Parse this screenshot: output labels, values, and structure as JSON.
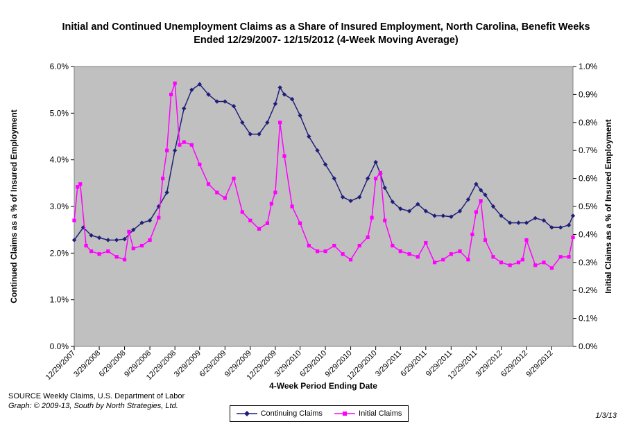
{
  "chart_data": {
    "type": "line",
    "title": "Initial and Continued Unemployment Claims as a Share of Insured Employment, North Carolina, Benefit Weeks Ended 12/29/2007- 12/15/2012 (4-Week Moving Average)",
    "xlabel": "4-Week Period Ending Date",
    "ylabel_left": "Continued Claims as a % of Insured Employment",
    "ylabel_right": "Initial Claims as a % of Insured Employment",
    "ylim_left": [
      0,
      6
    ],
    "ylim_right": [
      0,
      1
    ],
    "y_ticks_left": [
      "0.0%",
      "1.0%",
      "2.0%",
      "3.0%",
      "4.0%",
      "5.0%",
      "6.0%"
    ],
    "y_ticks_right": [
      "0.0%",
      "0.1%",
      "0.2%",
      "0.3%",
      "0.4%",
      "0.5%",
      "0.6%",
      "0.7%",
      "0.8%",
      "0.9%",
      "1.0%"
    ],
    "x_ticks": [
      "12/29/2007",
      "3/29/2008",
      "6/29/2008",
      "9/29/2008",
      "12/29/2008",
      "3/29/2009",
      "6/29/2009",
      "9/29/2009",
      "12/29/2009",
      "3/29/2010",
      "6/29/2010",
      "9/29/2010",
      "12/29/2010",
      "3/29/2011",
      "6/29/2011",
      "9/29/2011",
      "12/29/2011",
      "3/29/2012",
      "6/29/2012",
      "9/29/2012"
    ],
    "x_start": "12/29/2007",
    "x_end": "12/15/2012",
    "grid": false,
    "legend_position": "bottom",
    "plot_background": "#c0c0c0",
    "series": [
      {
        "name": "Continuing Claims",
        "axis": "left",
        "color": "#1f1f7a",
        "marker": "diamond",
        "x": [
          "12/29/2007",
          "1/31/2008",
          "2/29/2008",
          "3/29/2008",
          "4/30/2008",
          "5/31/2008",
          "6/29/2008",
          "7/31/2008",
          "8/31/2008",
          "9/29/2008",
          "10/31/2008",
          "11/30/2008",
          "12/29/2008",
          "1/31/2009",
          "2/28/2009",
          "3/29/2009",
          "4/30/2009",
          "5/31/2009",
          "6/29/2009",
          "7/31/2009",
          "8/31/2009",
          "9/29/2009",
          "10/31/2009",
          "11/30/2009",
          "12/29/2009",
          "1/15/2010",
          "1/31/2010",
          "2/28/2010",
          "3/29/2010",
          "4/30/2010",
          "5/31/2010",
          "6/29/2010",
          "7/31/2010",
          "8/31/2010",
          "9/29/2010",
          "10/31/2010",
          "11/30/2010",
          "12/29/2010",
          "1/15/2011",
          "1/31/2011",
          "2/28/2011",
          "3/29/2011",
          "4/30/2011",
          "5/31/2011",
          "6/29/2011",
          "7/31/2011",
          "8/31/2011",
          "9/29/2011",
          "10/31/2011",
          "11/30/2011",
          "12/29/2011",
          "1/15/2012",
          "1/31/2012",
          "2/29/2012",
          "3/29/2012",
          "4/30/2012",
          "5/31/2012",
          "6/29/2012",
          "7/31/2012",
          "8/31/2012",
          "9/29/2012",
          "10/31/2012",
          "11/30/2012",
          "12/15/2012"
        ],
        "values": [
          2.28,
          2.55,
          2.38,
          2.33,
          2.28,
          2.28,
          2.3,
          2.5,
          2.65,
          2.7,
          3.0,
          3.3,
          4.2,
          5.1,
          5.5,
          5.62,
          5.4,
          5.25,
          5.25,
          5.15,
          4.8,
          4.55,
          4.55,
          4.8,
          5.2,
          5.55,
          5.4,
          5.3,
          4.95,
          4.5,
          4.2,
          3.9,
          3.6,
          3.2,
          3.12,
          3.2,
          3.6,
          3.95,
          3.7,
          3.4,
          3.1,
          2.95,
          2.9,
          3.05,
          2.9,
          2.8,
          2.8,
          2.78,
          2.9,
          3.15,
          3.48,
          3.35,
          3.25,
          3.0,
          2.8,
          2.65,
          2.65,
          2.65,
          2.75,
          2.7,
          2.55,
          2.55,
          2.6,
          2.8
        ]
      },
      {
        "name": "Initial Claims",
        "axis": "right",
        "color": "#ff00ff",
        "marker": "square",
        "x": [
          "12/29/2007",
          "1/10/2008",
          "1/20/2008",
          "2/10/2008",
          "2/29/2008",
          "3/29/2008",
          "4/30/2008",
          "5/31/2008",
          "6/29/2008",
          "7/15/2008",
          "7/31/2008",
          "8/31/2008",
          "9/29/2008",
          "10/31/2008",
          "11/15/2008",
          "11/30/2008",
          "12/15/2008",
          "12/29/2008",
          "1/15/2009",
          "1/31/2009",
          "2/28/2009",
          "3/29/2009",
          "4/30/2009",
          "5/31/2009",
          "6/29/2009",
          "7/31/2009",
          "8/31/2009",
          "9/29/2009",
          "10/31/2009",
          "11/30/2009",
          "12/15/2009",
          "12/29/2009",
          "1/15/2010",
          "1/31/2010",
          "2/28/2010",
          "3/29/2010",
          "4/30/2010",
          "5/31/2010",
          "6/29/2010",
          "7/31/2010",
          "8/31/2010",
          "9/29/2010",
          "10/31/2010",
          "11/30/2010",
          "12/15/2010",
          "12/29/2010",
          "1/15/2011",
          "1/31/2011",
          "2/28/2011",
          "3/29/2011",
          "4/30/2011",
          "5/31/2011",
          "6/29/2011",
          "7/31/2011",
          "8/31/2011",
          "9/29/2011",
          "10/31/2011",
          "11/30/2011",
          "12/15/2011",
          "12/29/2011",
          "1/15/2012",
          "1/31/2012",
          "2/29/2012",
          "3/29/2012",
          "4/30/2012",
          "5/31/2012",
          "6/15/2012",
          "6/29/2012",
          "7/31/2012",
          "8/31/2012",
          "9/29/2012",
          "10/31/2012",
          "11/30/2012",
          "12/15/2012"
        ],
        "values": [
          0.45,
          0.57,
          0.58,
          0.36,
          0.34,
          0.33,
          0.34,
          0.32,
          0.31,
          0.41,
          0.35,
          0.36,
          0.38,
          0.46,
          0.6,
          0.7,
          0.9,
          0.94,
          0.72,
          0.73,
          0.72,
          0.65,
          0.58,
          0.55,
          0.53,
          0.6,
          0.48,
          0.45,
          0.42,
          0.44,
          0.51,
          0.55,
          0.8,
          0.68,
          0.5,
          0.44,
          0.36,
          0.34,
          0.34,
          0.36,
          0.33,
          0.31,
          0.36,
          0.39,
          0.46,
          0.6,
          0.62,
          0.45,
          0.36,
          0.34,
          0.33,
          0.32,
          0.37,
          0.3,
          0.31,
          0.33,
          0.34,
          0.31,
          0.4,
          0.48,
          0.52,
          0.38,
          0.32,
          0.3,
          0.29,
          0.3,
          0.31,
          0.38,
          0.29,
          0.3,
          0.28,
          0.32,
          0.32,
          0.39
        ]
      }
    ]
  },
  "footer": {
    "source": "SOURCE  Weekly Claims, U.S. Department of Labor",
    "credit": "Graph: © 2009-13, South by North Strategies, Ltd.",
    "date_stamp": "1/3/13"
  }
}
